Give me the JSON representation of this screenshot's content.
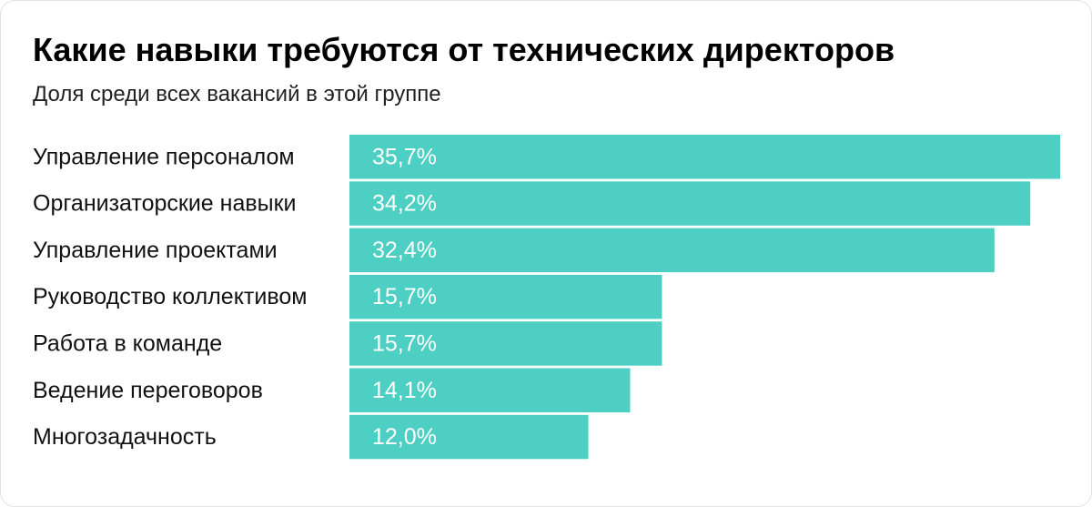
{
  "header": {
    "title": "Какие навыки требуются от технических директоров",
    "subtitle": "Доля среди всех вакансий в этой группе"
  },
  "colors": {
    "bar": "#4ecfc4",
    "text": "#111111",
    "value_text": "#ffffff"
  },
  "chart_data": {
    "type": "bar",
    "orientation": "horizontal",
    "title": "Какие навыки требуются от технических директоров",
    "subtitle": "Доля среди всех вакансий в этой группе",
    "categories": [
      "Управление персоналом",
      "Организаторские навыки",
      "Управление проектами",
      "Руководство коллективом",
      "Работа в команде",
      "Ведение переговоров",
      "Многозадачность"
    ],
    "values": [
      35.7,
      34.2,
      32.4,
      15.7,
      15.7,
      14.1,
      12.0
    ],
    "value_labels": [
      "35,7%",
      "34,2%",
      "32,4%",
      "15,7%",
      "15,7%",
      "14,1%",
      "12,0%"
    ],
    "xlim": [
      0,
      35.7
    ],
    "grid": false,
    "legend": "none"
  }
}
